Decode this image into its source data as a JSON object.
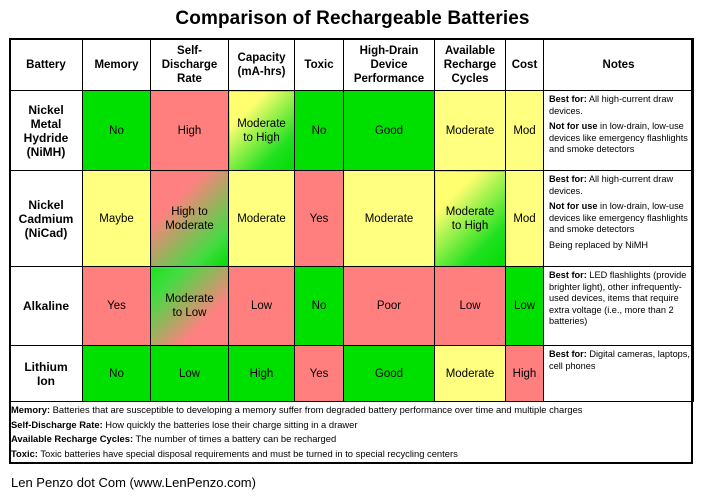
{
  "title": "Comparison of Rechargeable Batteries",
  "headers": [
    "Battery",
    "Memory",
    "Self-\nDischarge\nRate",
    "Capacity\n(mA-hrs)",
    "Toxic",
    "High-Drain\nDevice\nPerformance",
    "Available\nRecharge\nCycles",
    "Cost",
    "Notes"
  ],
  "rows": [
    {
      "battery": "Nickel\nMetal\nHydride\n(NiMH)",
      "cells": [
        {
          "text": "No",
          "color": "green"
        },
        {
          "text": "High",
          "color": "red"
        },
        {
          "text": "Moderate\nto High",
          "color": "yellow-green"
        },
        {
          "text": "No",
          "color": "green"
        },
        {
          "text": "Good",
          "color": "green"
        },
        {
          "text": "Moderate",
          "color": "yellow"
        },
        {
          "text": "Mod",
          "color": "yellow"
        }
      ],
      "notes": [
        {
          "label": "Best for:",
          "text": " All high-current draw devices."
        },
        {
          "label": "Not for use",
          "text": " in low-drain, low-use devices like emergency flashlights and smoke detectors"
        }
      ]
    },
    {
      "battery": "Nickel\nCadmium\n(NiCad)",
      "cells": [
        {
          "text": "Maybe",
          "color": "yellow"
        },
        {
          "text": "High to\nModerate",
          "color": "red-green"
        },
        {
          "text": "Moderate",
          "color": "yellow"
        },
        {
          "text": "Yes",
          "color": "red"
        },
        {
          "text": "Moderate",
          "color": "yellow"
        },
        {
          "text": "Moderate\nto High",
          "color": "yellow-green"
        },
        {
          "text": "Mod",
          "color": "yellow"
        }
      ],
      "notes": [
        {
          "label": "Best for:",
          "text": " All high-current draw devices."
        },
        {
          "label": "Not for use",
          "text": " in low-drain, low-use devices like emergency flashlights and smoke detectors"
        },
        {
          "label": "",
          "text": "Being replaced by NiMH"
        }
      ]
    },
    {
      "battery": "Alkaline",
      "cells": [
        {
          "text": "Yes",
          "color": "red"
        },
        {
          "text": "Moderate\nto Low",
          "color": "green-red"
        },
        {
          "text": "Low",
          "color": "red"
        },
        {
          "text": "No",
          "color": "green"
        },
        {
          "text": "Poor",
          "color": "red"
        },
        {
          "text": "Low",
          "color": "red"
        },
        {
          "text": "Low",
          "color": "green"
        }
      ],
      "notes": [
        {
          "label": "Best for:",
          "text": " LED flashlights (provide brighter light), other infrequently-used devices, items that require extra voltage (i.e., more than 2 batteries)"
        }
      ]
    },
    {
      "battery": "Lithium\nIon",
      "cells": [
        {
          "text": "No",
          "color": "green"
        },
        {
          "text": "Low",
          "color": "green"
        },
        {
          "text": "High",
          "color": "green"
        },
        {
          "text": "Yes",
          "color": "red"
        },
        {
          "text": "Good",
          "color": "green"
        },
        {
          "text": "Moderate",
          "color": "yellow"
        },
        {
          "text": "High",
          "color": "red"
        }
      ],
      "notes": [
        {
          "label": "Best for:",
          "text": " Digital cameras, laptops, cell phones"
        }
      ]
    }
  ],
  "legend": [
    {
      "term": "Memory:",
      "text": " Batteries that are susceptible to developing a memory  suffer from degraded battery performance over time and multiple charges"
    },
    {
      "term": "Self-Discharge Rate:",
      "text": " How quickly the batteries lose their charge sitting in a drawer"
    },
    {
      "term": "Available Recharge Cycles:",
      "text": " The number of times a battery can be recharged"
    },
    {
      "term": "Toxic:",
      "text": " Toxic batteries have special disposal requirements and must be turned in to special  recycling centers"
    }
  ],
  "footer": "Len Penzo dot Com (www.LenPenzo.com)",
  "colors": {
    "green": "#00e000",
    "yellow": "#ffff80",
    "red": "#ff7f7f"
  }
}
